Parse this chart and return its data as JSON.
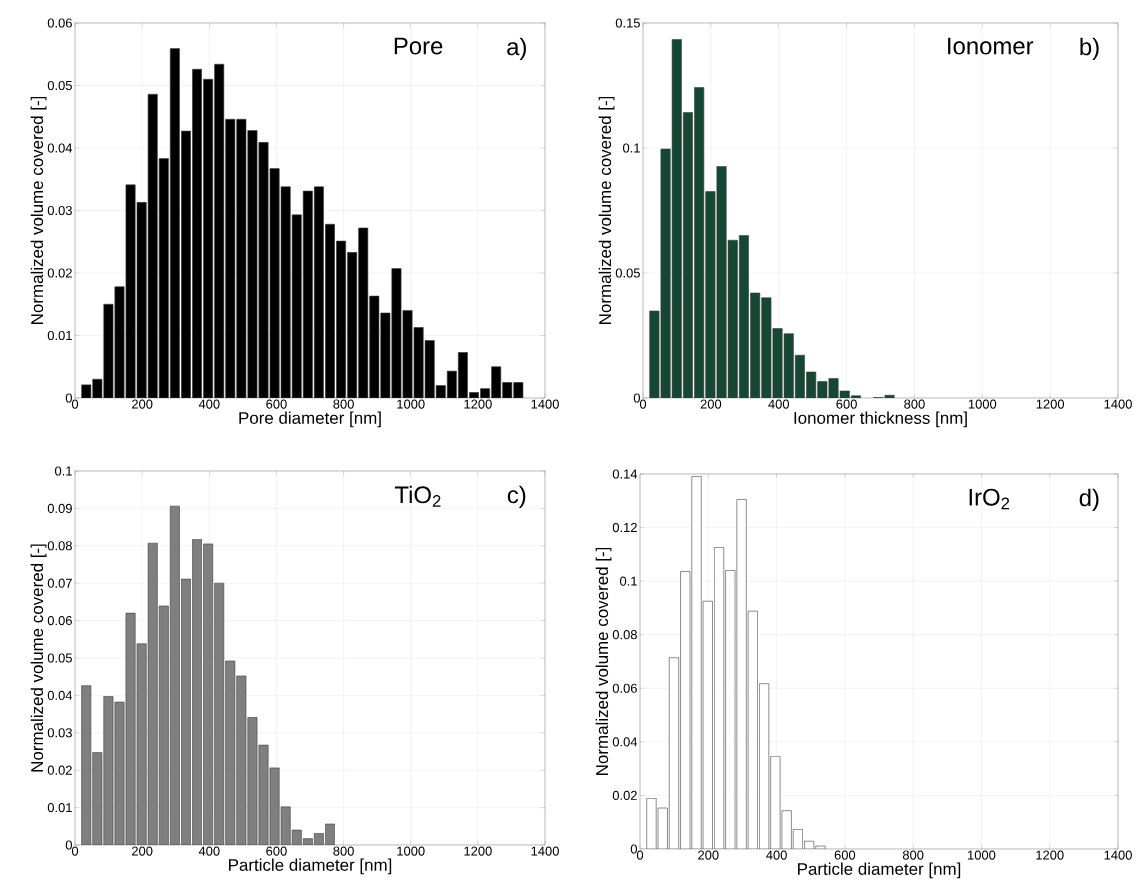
{
  "chart_data": [
    {
      "type": "histogram",
      "color": "#000000",
      "xlabel": "Pore diameter [nm]",
      "ylabel": "Normalized volume covered [-]",
      "annotations": [
        "Pore",
        "a)"
      ],
      "grid": true,
      "bins": [
        17,
        50,
        83,
        116,
        149,
        182,
        215,
        248,
        281,
        314,
        347,
        380,
        413,
        446,
        479,
        512,
        545,
        578,
        611,
        644,
        677,
        710,
        743,
        776,
        809,
        842,
        875,
        908,
        941,
        974,
        1007,
        1040,
        1073,
        1106,
        1139,
        1172,
        1205,
        1238,
        1271,
        1304,
        1337
      ],
      "values": [
        0.0021,
        0.003,
        0.015,
        0.0178,
        0.0341,
        0.0313,
        0.0486,
        0.0383,
        0.0559,
        0.0427,
        0.0526,
        0.051,
        0.0534,
        0.0446,
        0.0446,
        0.0428,
        0.0409,
        0.0367,
        0.0338,
        0.0293,
        0.0331,
        0.0338,
        0.0278,
        0.0251,
        0.0233,
        0.0272,
        0.0163,
        0.0136,
        0.0207,
        0.014,
        0.0113,
        0.0092,
        0.002,
        0.0043,
        0.0073,
        0.0009,
        0.0015,
        0.005,
        0.0025,
        0.0025
      ],
      "xlim": [
        0,
        1400
      ],
      "xticks": [
        0,
        200,
        400,
        600,
        800,
        1000,
        1200,
        1400
      ],
      "ylim": [
        0,
        0.06
      ],
      "yticks": [
        0,
        0.01,
        0.02,
        0.03,
        0.04,
        0.05,
        0.06
      ]
    },
    {
      "type": "histogram",
      "color": "#154734",
      "xlabel": "Ionomer thickness [nm]",
      "ylabel": "Normalized volume covered [-]",
      "annotations": [
        "Ionomer",
        "b)"
      ],
      "grid": true,
      "bins": [
        17,
        50,
        83,
        116,
        149,
        182,
        215,
        248,
        281,
        314,
        347,
        380,
        413,
        446,
        479,
        512,
        545,
        578,
        611,
        644,
        677,
        710,
        743
      ],
      "values": [
        0.0348,
        0.0996,
        0.1434,
        0.1142,
        0.1242,
        0.0826,
        0.0926,
        0.0631,
        0.065,
        0.042,
        0.0401,
        0.0278,
        0.0257,
        0.0171,
        0.0104,
        0.0066,
        0.0078,
        0.0028,
        0.0009,
        null,
        0.0002,
        0.0011
      ],
      "xlim": [
        0,
        1400
      ],
      "xticks": [
        0,
        200,
        400,
        600,
        800,
        1000,
        1200,
        1400
      ],
      "ylim": [
        0,
        0.15
      ],
      "yticks": [
        0,
        0.05,
        0.1,
        0.15
      ]
    },
    {
      "type": "histogram",
      "color": "#7f7f7f",
      "xlabel": "Particle diameter [nm]",
      "ylabel": "Normalized volume covered [-]",
      "annotations": [
        "TiO$_{2}$",
        "c)"
      ],
      "grid": true,
      "bins": [
        17,
        50,
        83,
        116,
        149,
        182,
        215,
        248,
        281,
        314,
        347,
        380,
        413,
        446,
        479,
        512,
        545,
        578,
        611,
        644,
        677,
        710,
        743,
        776
      ],
      "values": [
        0.0426,
        0.0247,
        0.0397,
        0.0382,
        0.062,
        0.0538,
        0.0807,
        0.0639,
        0.0906,
        0.0711,
        0.0817,
        0.0805,
        0.07,
        0.0492,
        0.0452,
        0.0341,
        0.0267,
        0.0206,
        0.0102,
        0.004,
        0.0017,
        0.0031,
        0.0056
      ],
      "xlim": [
        0,
        1400
      ],
      "xticks": [
        0,
        200,
        400,
        600,
        800,
        1000,
        1200,
        1400
      ],
      "ylim": [
        0,
        0.1
      ],
      "yticks": [
        0,
        0.01,
        0.02,
        0.03,
        0.04,
        0.05,
        0.06,
        0.07,
        0.08,
        0.09,
        0.1
      ]
    },
    {
      "type": "histogram",
      "color": "#ffffff",
      "xlabel": "Particle diameter [nm]",
      "ylabel": "Normalized volume covered [-]",
      "annotations": [
        "IrO$_{2}$",
        "d)"
      ],
      "grid": true,
      "bins": [
        17,
        50,
        83,
        116,
        149,
        182,
        215,
        248,
        281,
        314,
        347,
        380,
        413,
        446,
        479,
        512,
        545
      ],
      "values": [
        0.0189,
        0.0153,
        0.0714,
        0.1036,
        0.1391,
        0.0925,
        0.1126,
        0.104,
        0.1305,
        0.0888,
        0.0617,
        0.0346,
        0.0143,
        0.0073,
        0.0029,
        0.0011
      ],
      "xlim": [
        0,
        1400
      ],
      "xticks": [
        0,
        200,
        400,
        600,
        800,
        1000,
        1200,
        1400
      ],
      "ylim": [
        0,
        0.14
      ],
      "yticks": [
        0,
        0.02,
        0.04,
        0.06,
        0.08,
        0.1,
        0.12,
        0.14
      ]
    }
  ]
}
